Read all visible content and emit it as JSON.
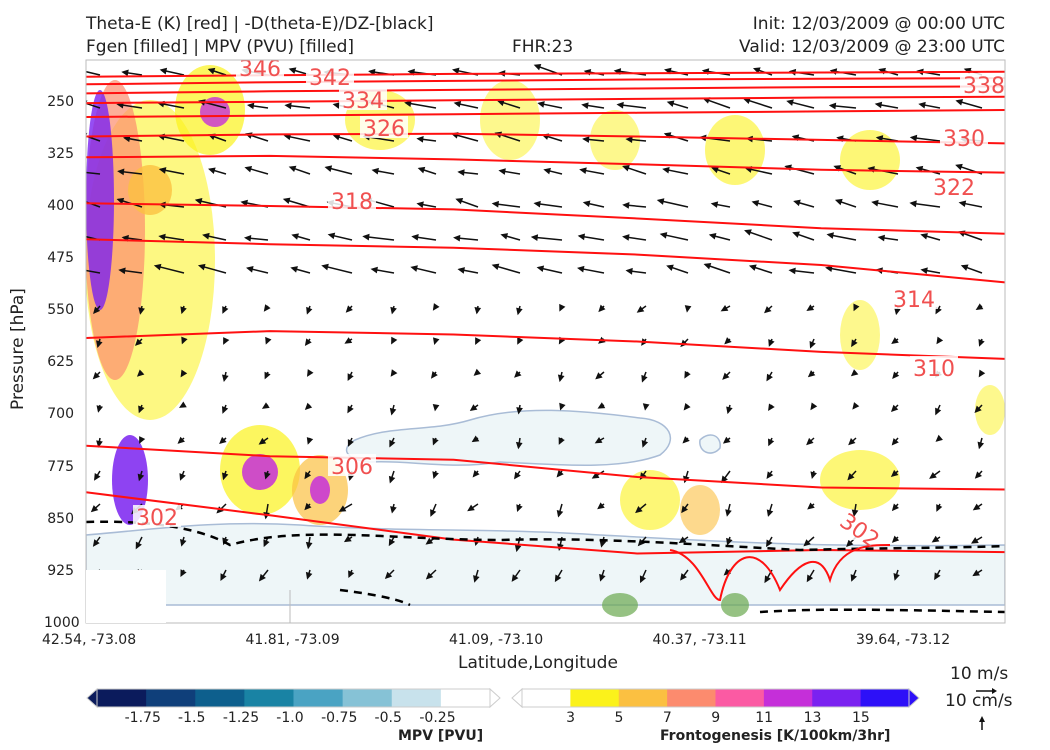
{
  "header": {
    "title_left_1": "Theta-E (K) [red] | -D(theta-E)/DZ-[black]",
    "title_left_2": "Fgen [filled] | MPV (PVU) [filled]",
    "fhr": "FHR:23",
    "init": "Init: 12/03/2009 @ 00:00 UTC",
    "valid": "Valid: 12/03/2009 @ 23:00 UTC"
  },
  "chart_data": {
    "type": "cross-section",
    "ylabel": "Pressure [hPa]",
    "xlabel": "Latitude,Longitude",
    "y_ticks": [
      "250",
      "325",
      "400",
      "475",
      "550",
      "625",
      "700",
      "775",
      "850",
      "925",
      "1000"
    ],
    "x_ticks": [
      "42.54, -73.08",
      "41.81, -73.09",
      "41.09, -73.10",
      "40.37, -73.11",
      "39.64, -73.12"
    ],
    "ylim": [
      190,
      1000
    ],
    "theta_e_contours": [
      {
        "label": "346",
        "p": [
          214,
          212,
          210,
          209,
          208,
          207
        ]
      },
      {
        "label": "342",
        "p": [
          225,
          222,
          220,
          218,
          217,
          216
        ]
      },
      {
        "label": "338",
        "p": [
          238,
          235,
          233,
          231,
          229,
          228
        ]
      },
      {
        "label": "334",
        "p": [
          252,
          250,
          248,
          246,
          244,
          243
        ]
      },
      {
        "label": "330",
        "p": [
          272,
          270,
          268,
          266,
          264,
          262
        ]
      },
      {
        "label": "326",
        "p": [
          300,
          297,
          296,
          300,
          305,
          310
        ]
      },
      {
        "label": "322",
        "p": [
          330,
          328,
          333,
          340,
          348,
          352
        ]
      },
      {
        "label": "318",
        "p": [
          396,
          400,
          405,
          418,
          432,
          440
        ]
      },
      {
        "label": "314",
        "p": [
          448,
          455,
          460,
          470,
          485,
          510
        ]
      },
      {
        "label": "310",
        "p": [
          590,
          580,
          585,
          595,
          610,
          620
        ]
      },
      {
        "label": "306",
        "p": [
          745,
          760,
          765,
          790,
          805,
          808
        ]
      },
      {
        "label": "302",
        "p": [
          812,
          845,
          880,
          900,
          895,
          898
        ]
      }
    ],
    "contour_labels": [
      "346",
      "342",
      "338",
      "334",
      "330",
      "326",
      "322",
      "318",
      "314",
      "310",
      "306",
      "302",
      "302"
    ],
    "fgen_colorbar": {
      "title": "Frontogenesis [K/100km/3hr]",
      "ticks": [
        "3",
        "5",
        "7",
        "9",
        "11",
        "13",
        "15"
      ],
      "colors": [
        "#ffffff",
        "#fbf21b",
        "#fbc041",
        "#fc8b6e",
        "#fb5aa3",
        "#c52fd9",
        "#7a22f0",
        "#2d10f8"
      ]
    },
    "mpv_colorbar": {
      "title": "MPV [PVU]",
      "ticks": [
        "-1.75",
        "-1.5",
        "-1.25",
        "-1.0",
        "-0.75",
        "-0.5",
        "-0.25"
      ],
      "colors": [
        "#0b1b5c",
        "#0f3f7a",
        "#0d5f8d",
        "#1983a4",
        "#4aa3c3",
        "#86c2d6",
        "#c8e2ec",
        "#ffffff"
      ]
    },
    "wind_key": {
      "label_1": "10 m/s",
      "label_2": "10 cm/s"
    }
  }
}
